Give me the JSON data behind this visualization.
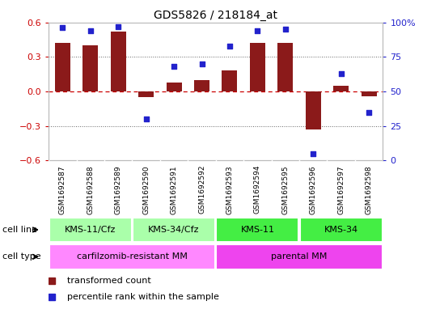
{
  "title": "GDS5826 / 218184_at",
  "samples": [
    "GSM1692587",
    "GSM1692588",
    "GSM1692589",
    "GSM1692590",
    "GSM1692591",
    "GSM1692592",
    "GSM1692593",
    "GSM1692594",
    "GSM1692595",
    "GSM1692596",
    "GSM1692597",
    "GSM1692598"
  ],
  "bar_values": [
    0.42,
    0.4,
    0.52,
    -0.05,
    0.08,
    0.1,
    0.18,
    0.42,
    0.42,
    -0.33,
    0.05,
    -0.04
  ],
  "dot_values": [
    96,
    94,
    97,
    30,
    68,
    70,
    83,
    94,
    95,
    5,
    63,
    35
  ],
  "ylim_left": [
    -0.6,
    0.6
  ],
  "ylim_right": [
    0,
    100
  ],
  "yticks_left": [
    -0.6,
    -0.3,
    0.0,
    0.3,
    0.6
  ],
  "yticks_right": [
    0,
    25,
    50,
    75,
    100
  ],
  "bar_color": "#8B1A1A",
  "dot_color": "#2222CC",
  "hline_color": "#CC0000",
  "dotted_color": "#666666",
  "cell_line_groups": [
    {
      "label": "KMS-11/Cfz",
      "start": 0,
      "end": 2,
      "color": "#AAFFAA"
    },
    {
      "label": "KMS-34/Cfz",
      "start": 3,
      "end": 5,
      "color": "#AAFFAA"
    },
    {
      "label": "KMS-11",
      "start": 6,
      "end": 8,
      "color": "#44EE44"
    },
    {
      "label": "KMS-34",
      "start": 9,
      "end": 11,
      "color": "#44EE44"
    }
  ],
  "cell_type_groups": [
    {
      "label": "carfilzomib-resistant MM",
      "start": 0,
      "end": 5,
      "color": "#FF88FF"
    },
    {
      "label": "parental MM",
      "start": 6,
      "end": 11,
      "color": "#EE44EE"
    }
  ],
  "legend_bar_label": "transformed count",
  "legend_dot_label": "percentile rank within the sample",
  "cell_line_label": "cell line",
  "cell_type_label": "cell type",
  "background_color": "#ffffff",
  "tick_label_color_left": "#CC0000",
  "tick_label_color_right": "#2222CC",
  "header_bg": "#CCCCCC"
}
